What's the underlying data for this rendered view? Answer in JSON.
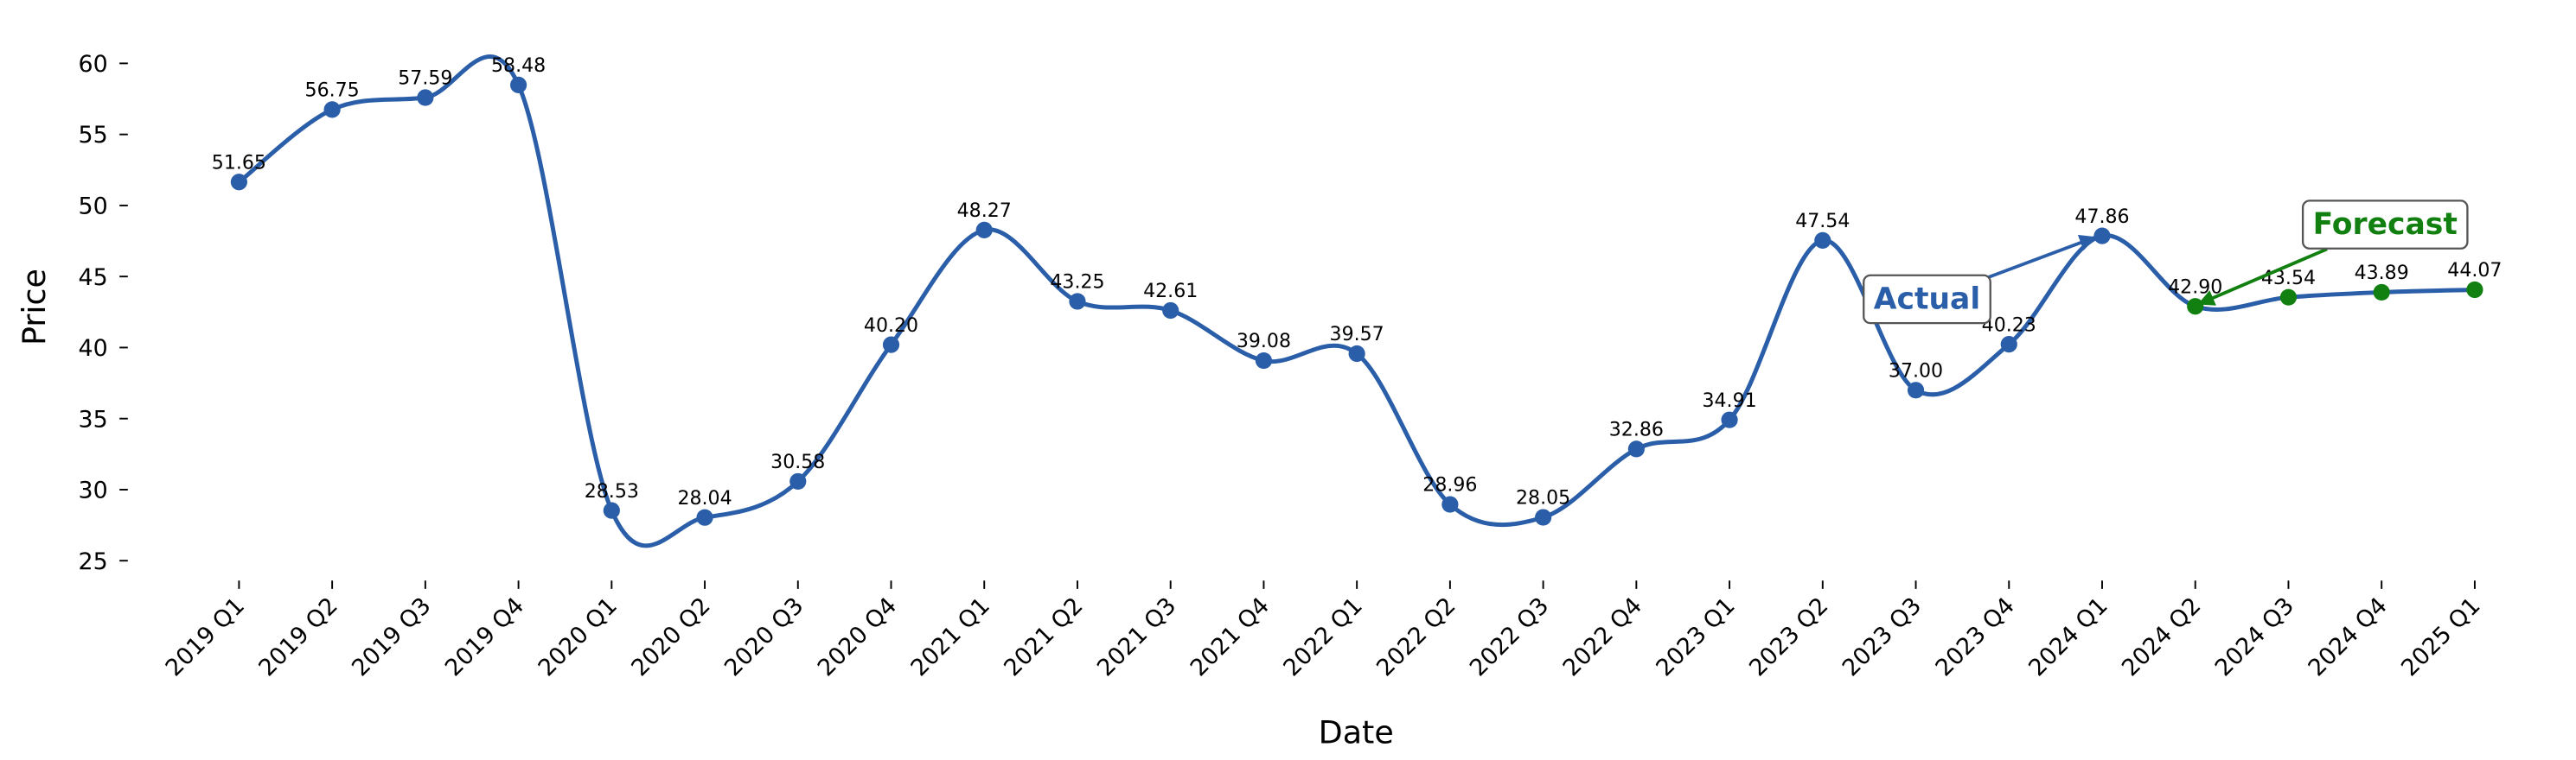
{
  "chart_data": {
    "type": "line",
    "xlabel": "Date",
    "ylabel": "Price",
    "categories": [
      "2019 Q1",
      "2019 Q2",
      "2019 Q3",
      "2019 Q4",
      "2020 Q1",
      "2020 Q2",
      "2020 Q3",
      "2020 Q4",
      "2021 Q1",
      "2021 Q2",
      "2021 Q3",
      "2021 Q4",
      "2022 Q1",
      "2022 Q2",
      "2022 Q3",
      "2022 Q4",
      "2023 Q1",
      "2023 Q2",
      "2023 Q3",
      "2023 Q4",
      "2024 Q1",
      "2024 Q2",
      "2024 Q3",
      "2024 Q4",
      "2025 Q1"
    ],
    "series": [
      {
        "name": "Actual",
        "color": "#2a5ea8",
        "values": [
          51.65,
          56.75,
          57.59,
          58.48,
          28.53,
          28.04,
          30.58,
          40.2,
          48.27,
          43.25,
          42.61,
          39.08,
          39.57,
          28.96,
          28.05,
          32.86,
          34.91,
          47.54,
          37.0,
          40.23,
          47.86,
          null,
          null,
          null,
          null
        ],
        "value_labels": [
          "51.65",
          "56.75",
          "57.59",
          "58.48",
          "28.53",
          "28.04",
          "30.58",
          "40.20",
          "48.27",
          "43.25",
          "42.61",
          "39.08",
          "39.57",
          "28.96",
          "28.05",
          "32.86",
          "34.91",
          "47.54",
          "37.00",
          "40.23",
          "47.86",
          null,
          null,
          null,
          null
        ]
      },
      {
        "name": "Forecast",
        "color": "#118011",
        "values": [
          null,
          null,
          null,
          null,
          null,
          null,
          null,
          null,
          null,
          null,
          null,
          null,
          null,
          null,
          null,
          null,
          null,
          null,
          null,
          null,
          null,
          42.9,
          43.54,
          43.89,
          44.07
        ],
        "value_labels": [
          null,
          null,
          null,
          null,
          null,
          null,
          null,
          null,
          null,
          null,
          null,
          null,
          null,
          null,
          null,
          null,
          null,
          null,
          null,
          null,
          null,
          "42.90",
          "43.54",
          "43.89",
          "44.07"
        ]
      }
    ],
    "ylim": [
      25,
      60
    ],
    "yticks": [
      25,
      30,
      35,
      40,
      45,
      50,
      55,
      60
    ]
  }
}
